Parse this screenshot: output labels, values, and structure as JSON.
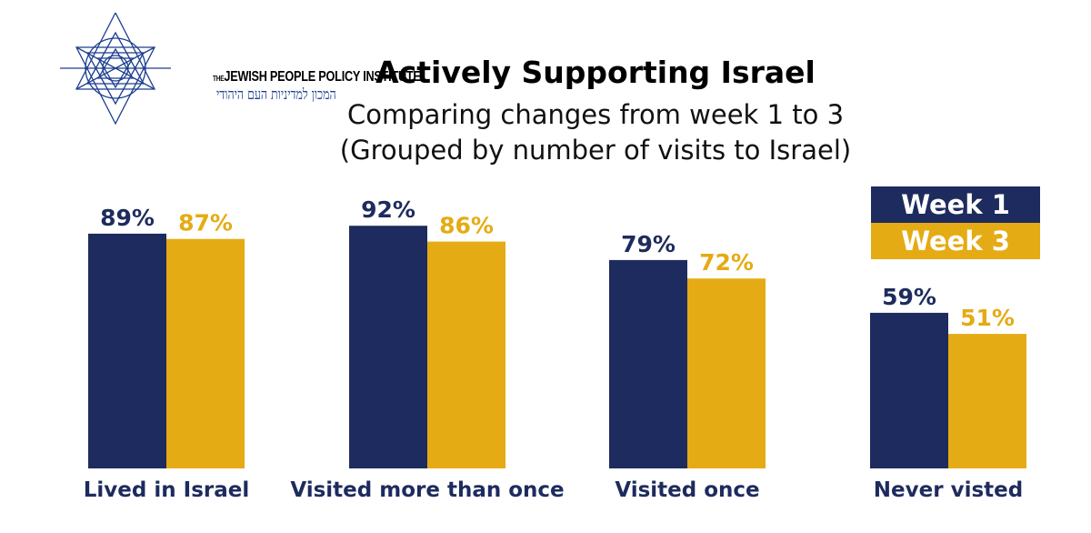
{
  "logo": {
    "name_en": "JEWISH PEOPLE POLICY INSTITUTE",
    "name_en_prefix": "THE",
    "name_he": "המכון למדיניות העם היהודי"
  },
  "colors": {
    "week1": "#1e2b5e",
    "week3": "#e5ab14",
    "label": "#1e2b5e"
  },
  "chart_data": {
    "type": "bar",
    "title": "Actively Supporting Israel",
    "subtitle": [
      "Comparing changes from week 1 to 3",
      "(Grouped by number of visits to Israel)"
    ],
    "categories": [
      "Lived in Israel",
      "Visited more than once",
      "Visited once",
      "Never visted"
    ],
    "series": [
      {
        "name": "Week 1",
        "values": [
          89,
          92,
          79,
          59
        ],
        "labels": [
          "89%",
          "92%",
          "79%",
          "59%"
        ]
      },
      {
        "name": "Week 3",
        "values": [
          87,
          86,
          72,
          51
        ],
        "labels": [
          "87%",
          "86%",
          "72%",
          "51%"
        ]
      }
    ],
    "unit": "%",
    "grid": false,
    "legend": "top-right"
  }
}
